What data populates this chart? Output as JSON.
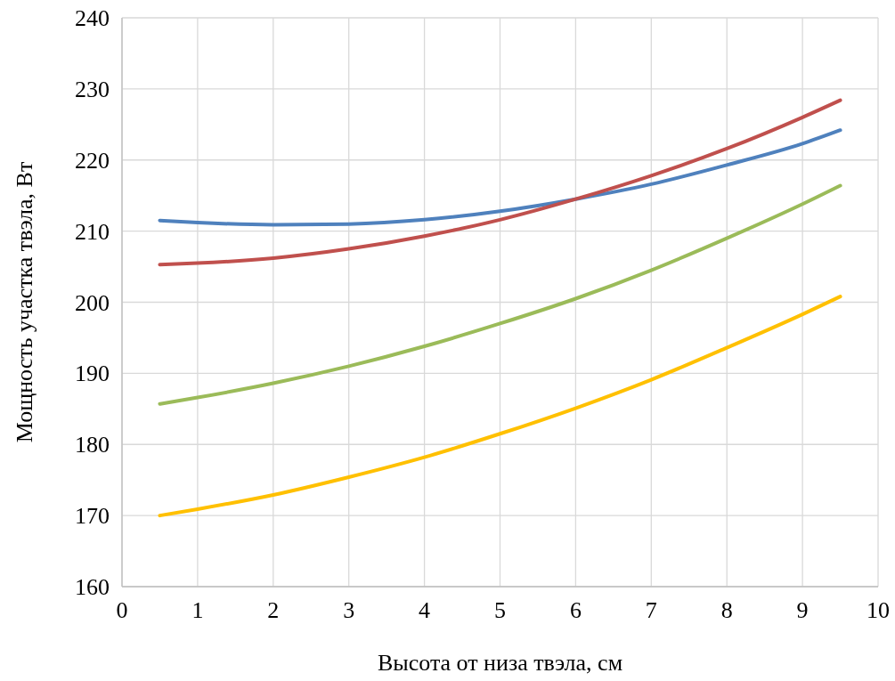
{
  "chart_data": {
    "type": "line",
    "xlabel": "Высота от низа твэла, см",
    "ylabel": "Мощность участка твэла, Вт",
    "xlim": [
      0,
      10
    ],
    "xticks": [
      0,
      1,
      2,
      3,
      4,
      5,
      6,
      7,
      8,
      9,
      10
    ],
    "ylim": [
      160,
      240
    ],
    "yticks": [
      160,
      170,
      180,
      190,
      200,
      210,
      220,
      230,
      240
    ],
    "grid": true,
    "x": [
      0.5,
      1,
      2,
      3,
      4,
      5,
      6,
      7,
      8,
      9,
      9.5
    ],
    "series": [
      {
        "color": "#4f81bd",
        "values": [
          211.5,
          211.2,
          210.9,
          211.0,
          211.6,
          212.8,
          214.5,
          216.6,
          219.3,
          222.3,
          224.2
        ]
      },
      {
        "color": "#c0504d",
        "values": [
          205.3,
          205.5,
          206.2,
          207.5,
          209.3,
          211.6,
          214.5,
          217.8,
          221.6,
          226.0,
          228.4
        ]
      },
      {
        "color": "#9bbb59",
        "values": [
          185.7,
          186.6,
          188.6,
          191.0,
          193.8,
          197.0,
          200.5,
          204.5,
          209.0,
          213.8,
          216.4
        ]
      },
      {
        "color": "#ffc000",
        "values": [
          170.0,
          170.9,
          172.9,
          175.4,
          178.2,
          181.5,
          185.1,
          189.1,
          193.6,
          198.3,
          200.8
        ]
      }
    ]
  }
}
